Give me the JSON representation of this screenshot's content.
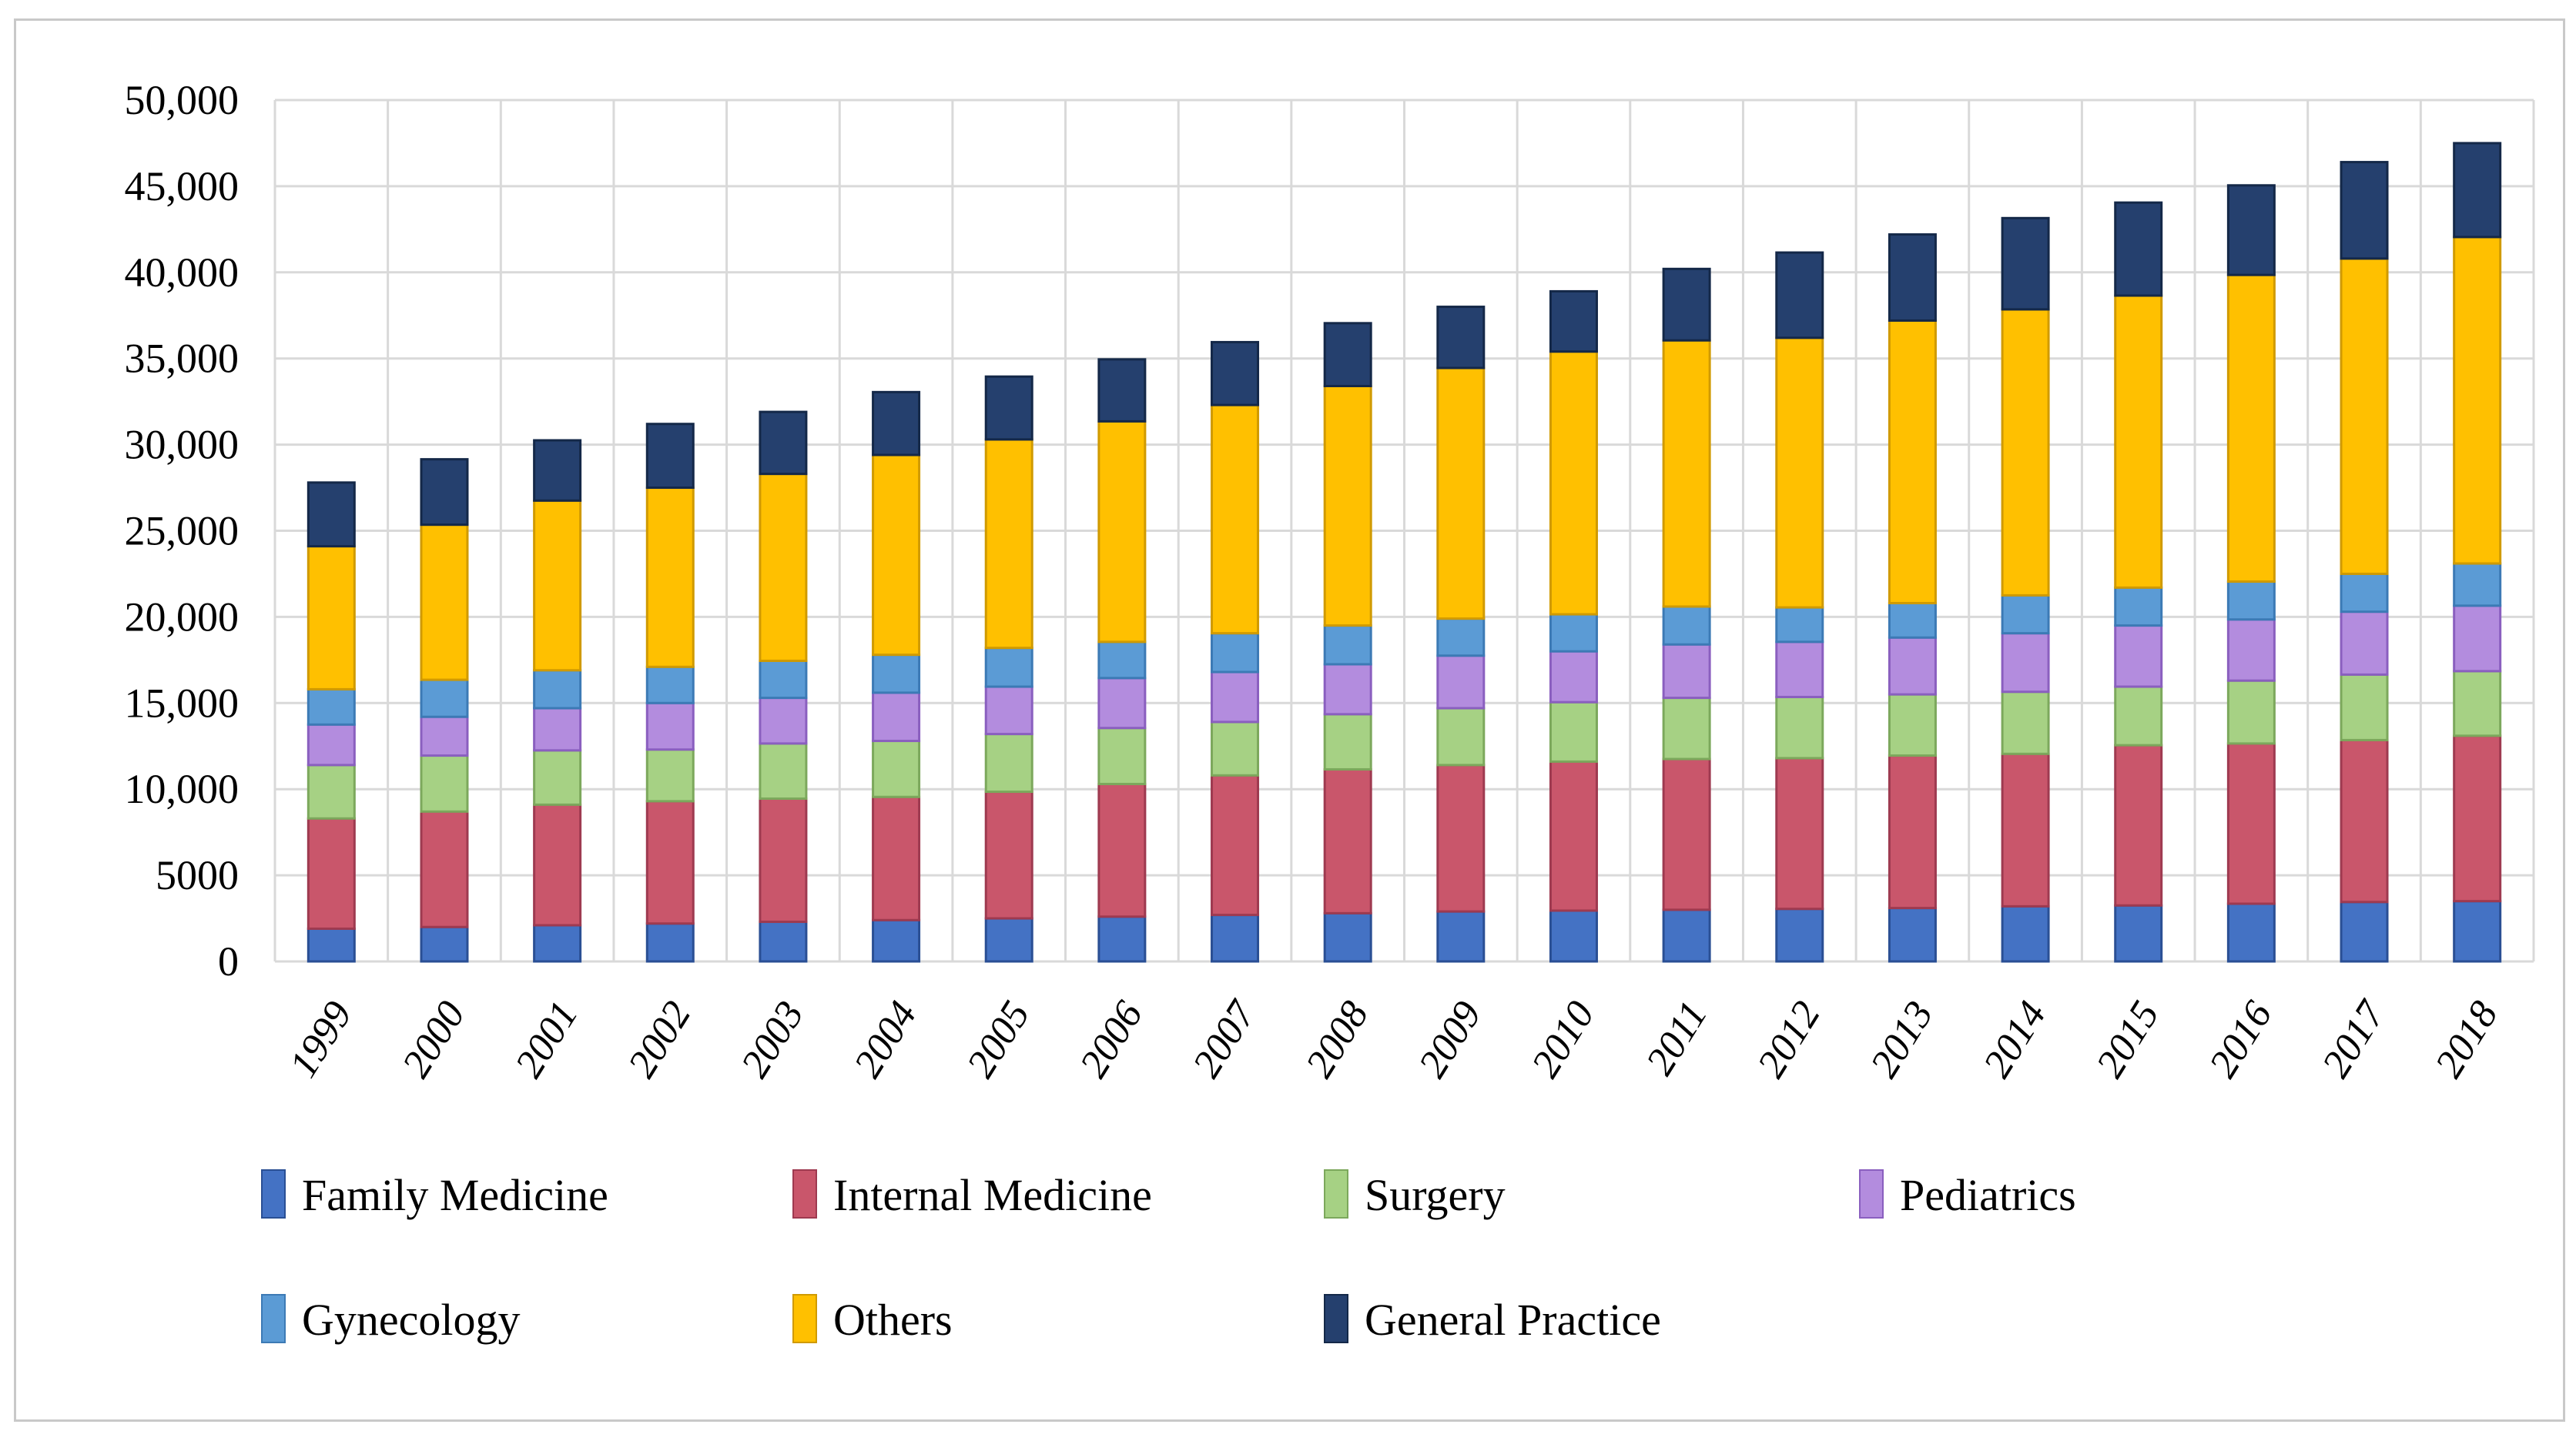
{
  "figure": {
    "background": "#FFFFFF",
    "border_color": "#C9C9C9",
    "gridline_color": "#D9D9D9"
  },
  "chart_data": {
    "type": "bar",
    "stacked": true,
    "title": "",
    "xlabel": "",
    "ylabel": "",
    "categories": [
      "1999",
      "2000",
      "2001",
      "2002",
      "2003",
      "2004",
      "2005",
      "2006",
      "2007",
      "2008",
      "2009",
      "2010",
      "2011",
      "2012",
      "2013",
      "2014",
      "2015",
      "2016",
      "2017",
      "2018"
    ],
    "series": [
      {
        "name": "Family Medicine",
        "color": "#4472C4",
        "border": "#2A4F94",
        "values": [
          1900,
          2000,
          2100,
          2200,
          2300,
          2400,
          2500,
          2600,
          2700,
          2800,
          2900,
          2950,
          3000,
          3050,
          3100,
          3200,
          3250,
          3350,
          3450,
          3500
        ]
      },
      {
        "name": "Internal Medicine",
        "color": "#C9566B",
        "border": "#9E3A50",
        "values": [
          6400,
          6700,
          7000,
          7100,
          7150,
          7150,
          7350,
          7700,
          8100,
          8350,
          8500,
          8650,
          8750,
          8750,
          8850,
          8850,
          9300,
          9300,
          9400,
          9600
        ]
      },
      {
        "name": "Surgery",
        "color": "#A6D184",
        "border": "#7CA85C",
        "values": [
          3100,
          3250,
          3150,
          3000,
          3200,
          3250,
          3350,
          3250,
          3100,
          3200,
          3300,
          3450,
          3550,
          3550,
          3550,
          3600,
          3400,
          3650,
          3800,
          3750
        ]
      },
      {
        "name": "Pediatrics",
        "color": "#B38CDE",
        "border": "#8A5FBF",
        "values": [
          2350,
          2250,
          2450,
          2700,
          2650,
          2800,
          2750,
          2900,
          2900,
          2900,
          3050,
          2950,
          3100,
          3200,
          3300,
          3400,
          3550,
          3550,
          3650,
          3800
        ]
      },
      {
        "name": "Gynecology",
        "color": "#5B9BD5",
        "border": "#3C7AB5",
        "values": [
          2050,
          2150,
          2200,
          2100,
          2150,
          2200,
          2250,
          2100,
          2250,
          2250,
          2150,
          2150,
          2200,
          2000,
          2000,
          2200,
          2200,
          2200,
          2200,
          2450
        ]
      },
      {
        "name": "Others",
        "color": "#FFC000",
        "border": "#D09A00",
        "values": [
          8300,
          9000,
          9850,
          10400,
          10850,
          11600,
          12100,
          12800,
          13250,
          13900,
          14550,
          15250,
          15450,
          15650,
          16400,
          16600,
          16950,
          17800,
          18300,
          18950
        ]
      },
      {
        "name": "General Practice",
        "color": "#25406E",
        "border": "#142848",
        "values": [
          3700,
          3800,
          3500,
          3700,
          3600,
          3650,
          3650,
          3600,
          3650,
          3650,
          3550,
          3500,
          4150,
          4950,
          5000,
          5300,
          5400,
          5200,
          5600,
          5450
        ]
      }
    ],
    "ylim": [
      0,
      50000
    ],
    "y_tick_step": 5000,
    "y_tick_labels": [
      "0",
      "5000",
      "10,000",
      "15,000",
      "20,000",
      "25,000",
      "30,000",
      "35,000",
      "40,000",
      "45,000",
      "50,000"
    ],
    "grid": true,
    "legend_position": "bottom",
    "legend_rows": [
      [
        "Family Medicine",
        "Internal Medicine",
        "Surgery",
        "Pediatrics"
      ],
      [
        "Gynecology",
        "Others",
        "General Practice"
      ]
    ]
  }
}
